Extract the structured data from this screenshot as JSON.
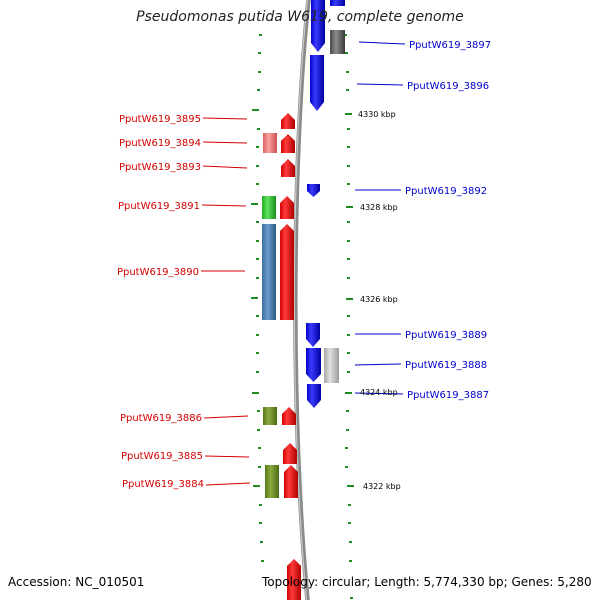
{
  "title": "Pseudomonas putida W619, complete genome",
  "footer": {
    "accession": "Accession: NC_010501",
    "summary": "Topology: circular; Length: 5,774,330 bp; Genes: 5,280"
  },
  "colors": {
    "backbone": "#7f7f7f",
    "tick": "#1e8c1e",
    "reverse_label": "#d40000",
    "forward_label": "#0000cc"
  },
  "axis_ticks": [
    "4330 kbp",
    "4328 kbp",
    "4326 kbp",
    "4324 kbp",
    "4322 kbp"
  ],
  "reverse_labels": [
    "PputW619_3895",
    "PputW619_3894",
    "PputW619_3893",
    "PputW619_3891",
    "PputW619_3890",
    "PputW619_3886",
    "PputW619_3885",
    "PputW619_3884"
  ],
  "forward_labels": [
    "PputW619_3897",
    "PputW619_3896",
    "PputW619_3892",
    "PputW619_3889",
    "PputW619_3888",
    "PputW619_3887"
  ]
}
